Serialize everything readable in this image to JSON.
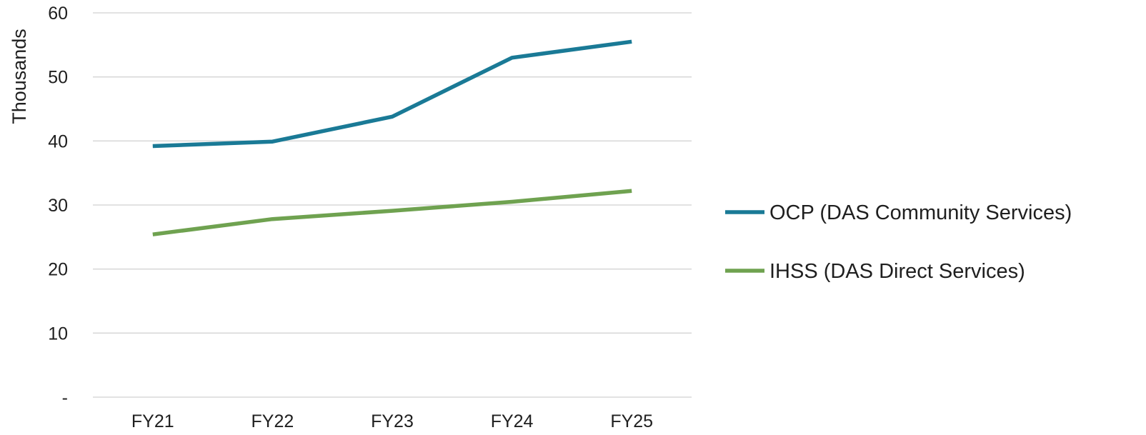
{
  "chart_data": {
    "type": "line",
    "categories": [
      "FY21",
      "FY22",
      "FY23",
      "FY24",
      "FY25"
    ],
    "series": [
      {
        "name": "OCP (DAS Community Services)",
        "color": "#1a7a96",
        "values": [
          39.2,
          39.9,
          43.8,
          53.0,
          55.5
        ]
      },
      {
        "name": "IHSS (DAS Direct Services)",
        "color": "#6fa250",
        "values": [
          25.4,
          27.8,
          29.1,
          30.5,
          32.2
        ]
      }
    ],
    "ylabel": "Thousands",
    "xlabel": "",
    "ylim": [
      0,
      60
    ],
    "yticks": [
      {
        "value": 0,
        "label": "-"
      },
      {
        "value": 10,
        "label": "10"
      },
      {
        "value": 20,
        "label": "20"
      },
      {
        "value": 30,
        "label": "30"
      },
      {
        "value": 40,
        "label": "40"
      },
      {
        "value": 50,
        "label": "50"
      },
      {
        "value": 60,
        "label": "60"
      }
    ],
    "grid": true,
    "legend": "right"
  }
}
